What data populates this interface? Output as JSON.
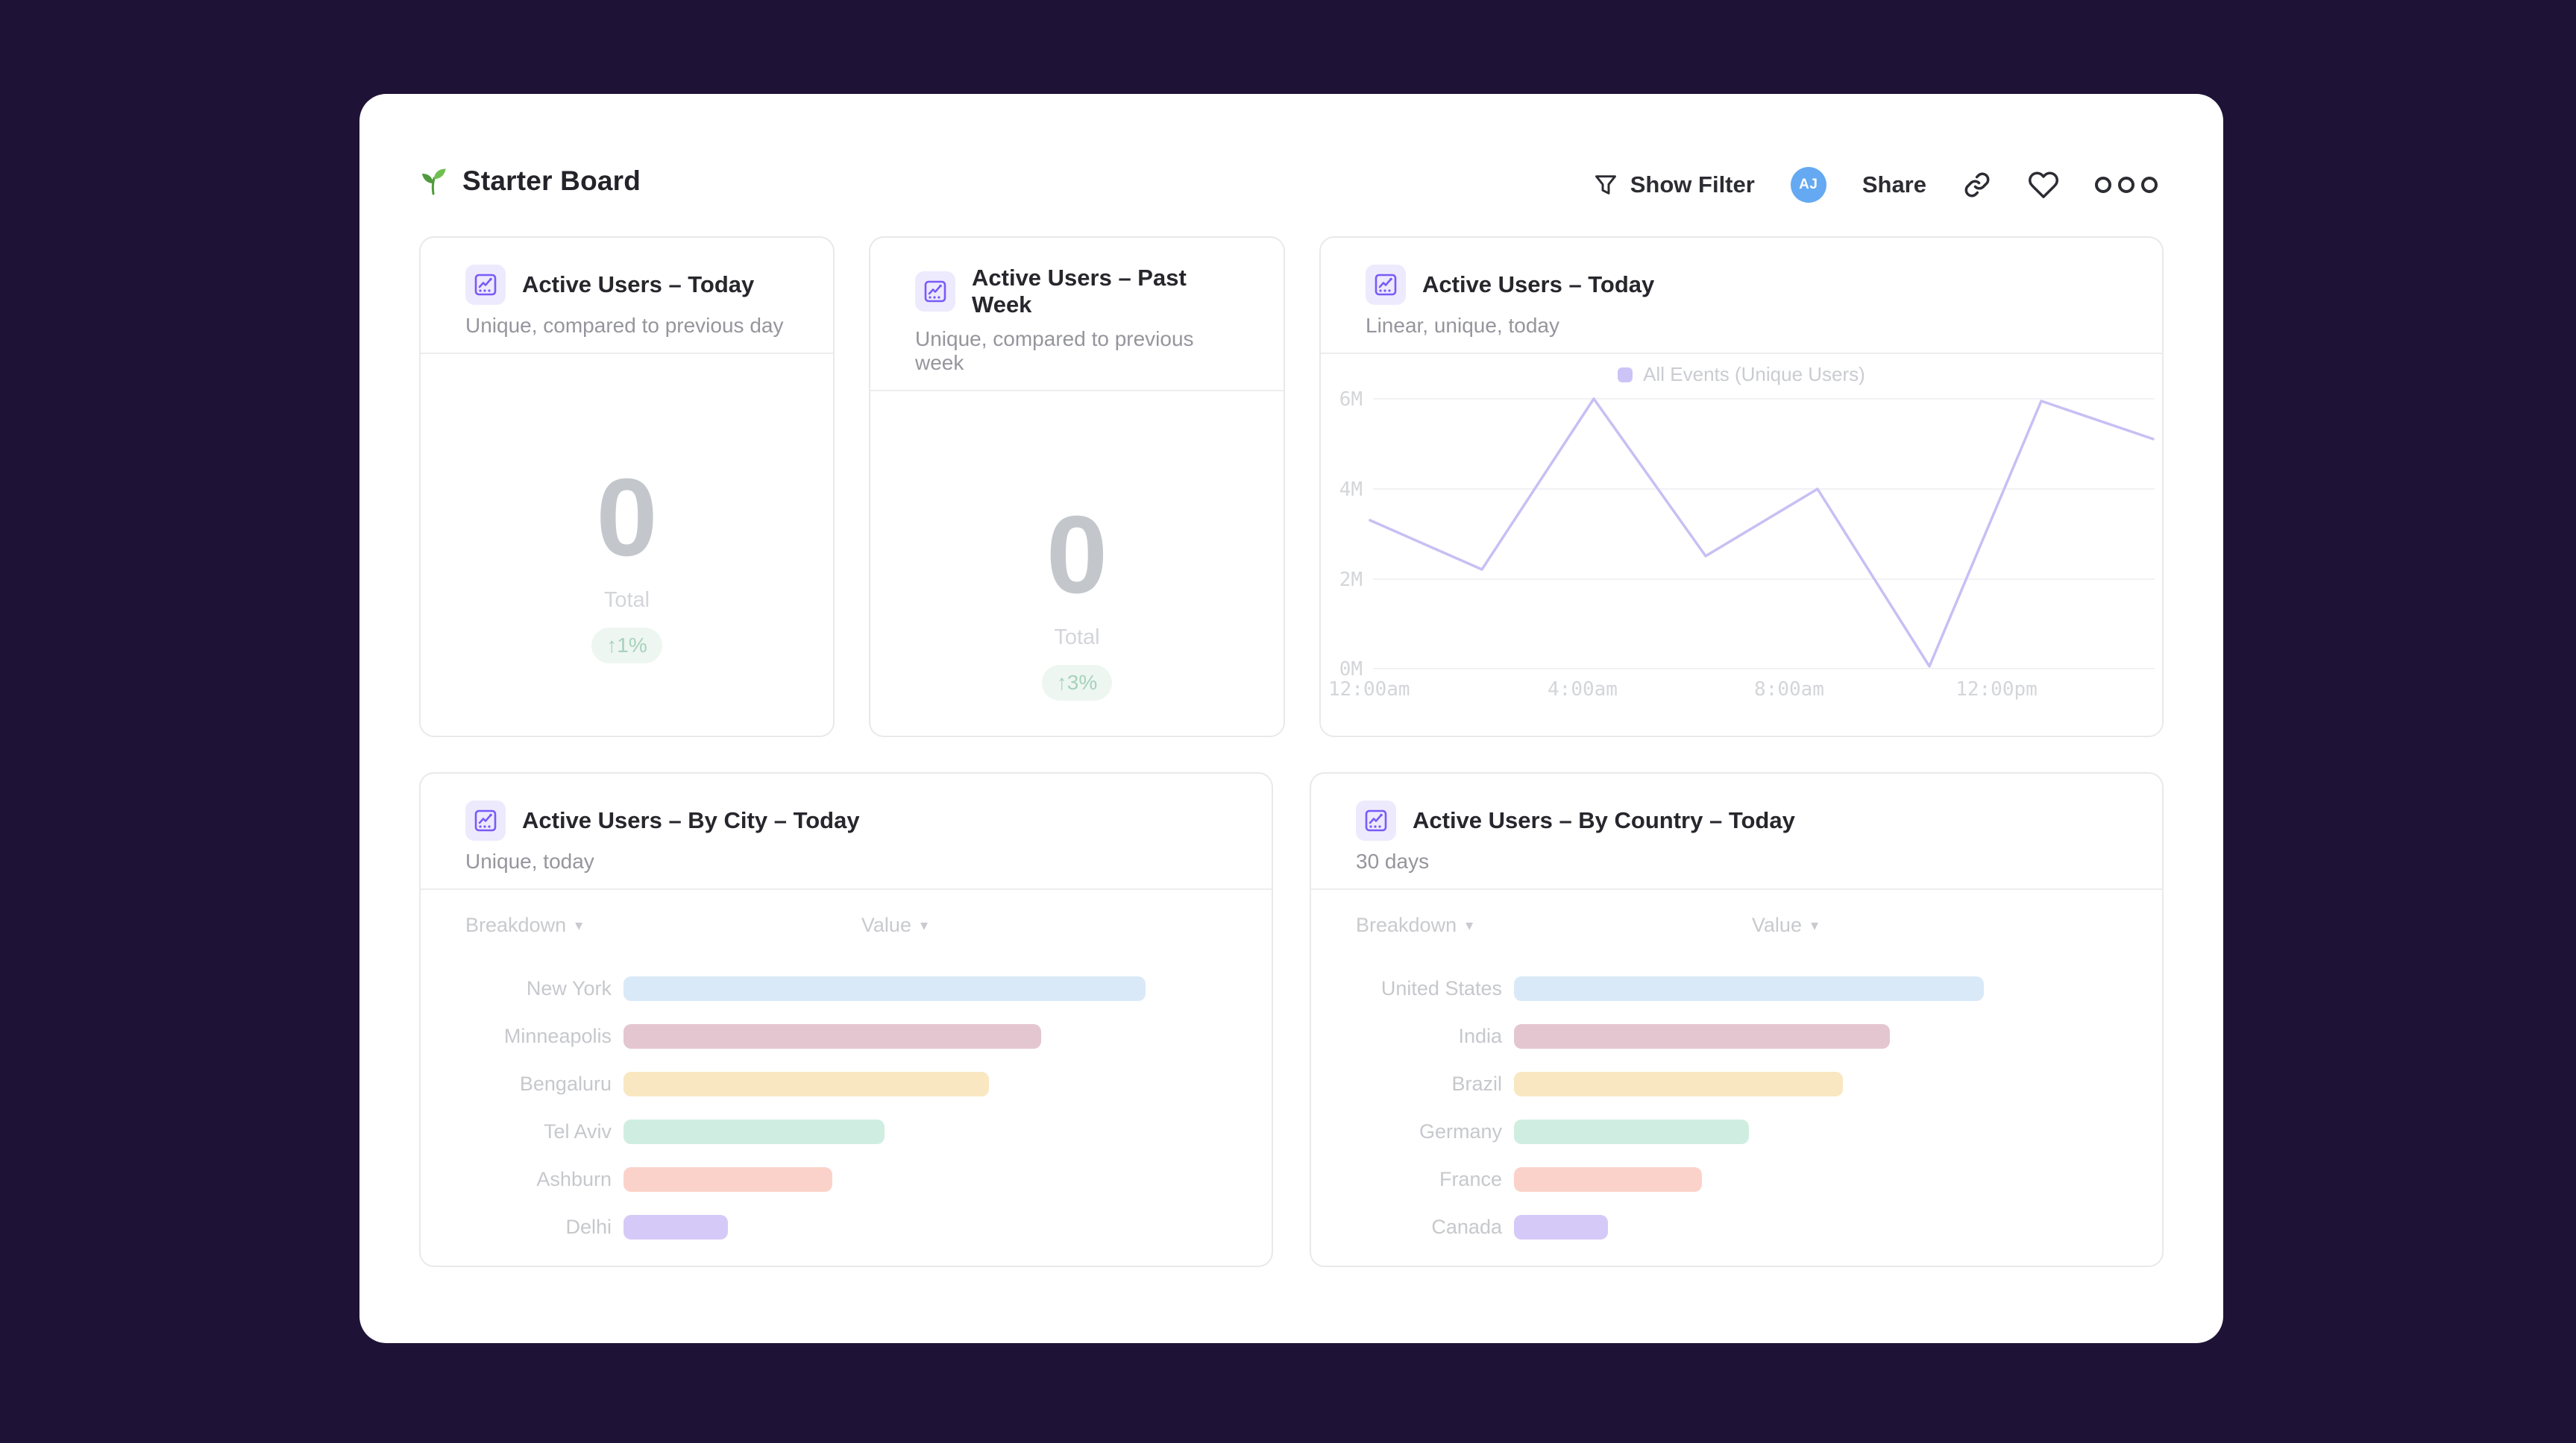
{
  "app": {
    "background_color": "#1f1237",
    "board_background": "#ffffff",
    "accent_purple": "#7a5af8"
  },
  "board_header": {
    "title": "Starter Board"
  },
  "toolbar": {
    "show_filter_label": "Show Filter",
    "avatar_initials": "AJ",
    "avatar_color": "#64a9f1",
    "share_label": "Share"
  },
  "icons": {
    "seedling": "seedling-icon",
    "filter": "funnel-icon",
    "link": "link-icon",
    "favorite": "heart-outline-icon",
    "more": "ellipsis-icon",
    "chart_badge": "line-chart-icon",
    "caret_glyph": "▾"
  },
  "kpi_cards": [
    {
      "title": "Active Users – Today",
      "subtitle": "Unique, compared to previous day",
      "value": "0",
      "value_label": "Total",
      "delta": "↑1%",
      "delta_color": "#a6d2bc",
      "delta_bg": "#eef6f1"
    },
    {
      "title": "Active Users – Past Week",
      "subtitle": "Unique, compared to previous week",
      "value": "0",
      "value_label": "Total",
      "delta": "↑3%",
      "delta_color": "#a6d2bc",
      "delta_bg": "#eef6f1"
    }
  ],
  "line_card": {
    "title": "Active Users – Today",
    "subtitle": "Linear, unique, today",
    "legend": "All Events (Unique Users)",
    "line_color": "#c8bff4",
    "legend_swatch_color": "#ccc3f7"
  },
  "breakdown_cards": [
    {
      "title": "Active Users – By City – Today",
      "subtitle": "Unique, today",
      "breakdown_label": "Breakdown",
      "value_label": "Value"
    },
    {
      "title": "Active Users – By Country – Today",
      "subtitle": "30 days",
      "breakdown_label": "Breakdown",
      "value_label": "Value"
    }
  ],
  "chart_data": [
    {
      "type": "line",
      "title": "Active Users – Today",
      "legend_position": "top-center",
      "grid": "horizontal",
      "x": [
        "12:00am",
        "2:00am",
        "4:00am",
        "6:00am",
        "8:00am",
        "10:00am",
        "12:00pm",
        "2:00pm"
      ],
      "x_tick_labels": [
        "12:00am",
        "4:00am",
        "8:00am",
        "12:00pm"
      ],
      "y_tick_labels": [
        "6M",
        "4M",
        "2M",
        "0M"
      ],
      "ylim_millions": [
        0,
        6
      ],
      "series": [
        {
          "name": "All Events (Unique Users)",
          "values_millions": [
            3.3,
            2.2,
            6.0,
            2.5,
            4.0,
            0.05,
            5.95,
            5.1
          ]
        }
      ]
    },
    {
      "type": "bar",
      "orientation": "horizontal",
      "title": "Active Users – By City – Today",
      "categories": [
        "New York",
        "Minneapolis",
        "Bengaluru",
        "Tel Aviv",
        "Ashburn",
        "Delhi"
      ],
      "values_percent_of_max": [
        100,
        80,
        70,
        50,
        40,
        20
      ],
      "bar_colors": [
        "#d9e9f8",
        "#e4c6d1",
        "#f8e7c1",
        "#cfeee1",
        "#fbd2c9",
        "#d5caf7"
      ]
    },
    {
      "type": "bar",
      "orientation": "horizontal",
      "title": "Active Users – By Country – Today",
      "categories": [
        "United States",
        "India",
        "Brazil",
        "Germany",
        "France",
        "Canada"
      ],
      "values_percent_of_max": [
        100,
        80,
        70,
        50,
        40,
        20
      ],
      "bar_colors": [
        "#d9e9f8",
        "#e4c6d1",
        "#f8e7c1",
        "#cfeee1",
        "#fbd2c9",
        "#d5caf7"
      ]
    }
  ]
}
